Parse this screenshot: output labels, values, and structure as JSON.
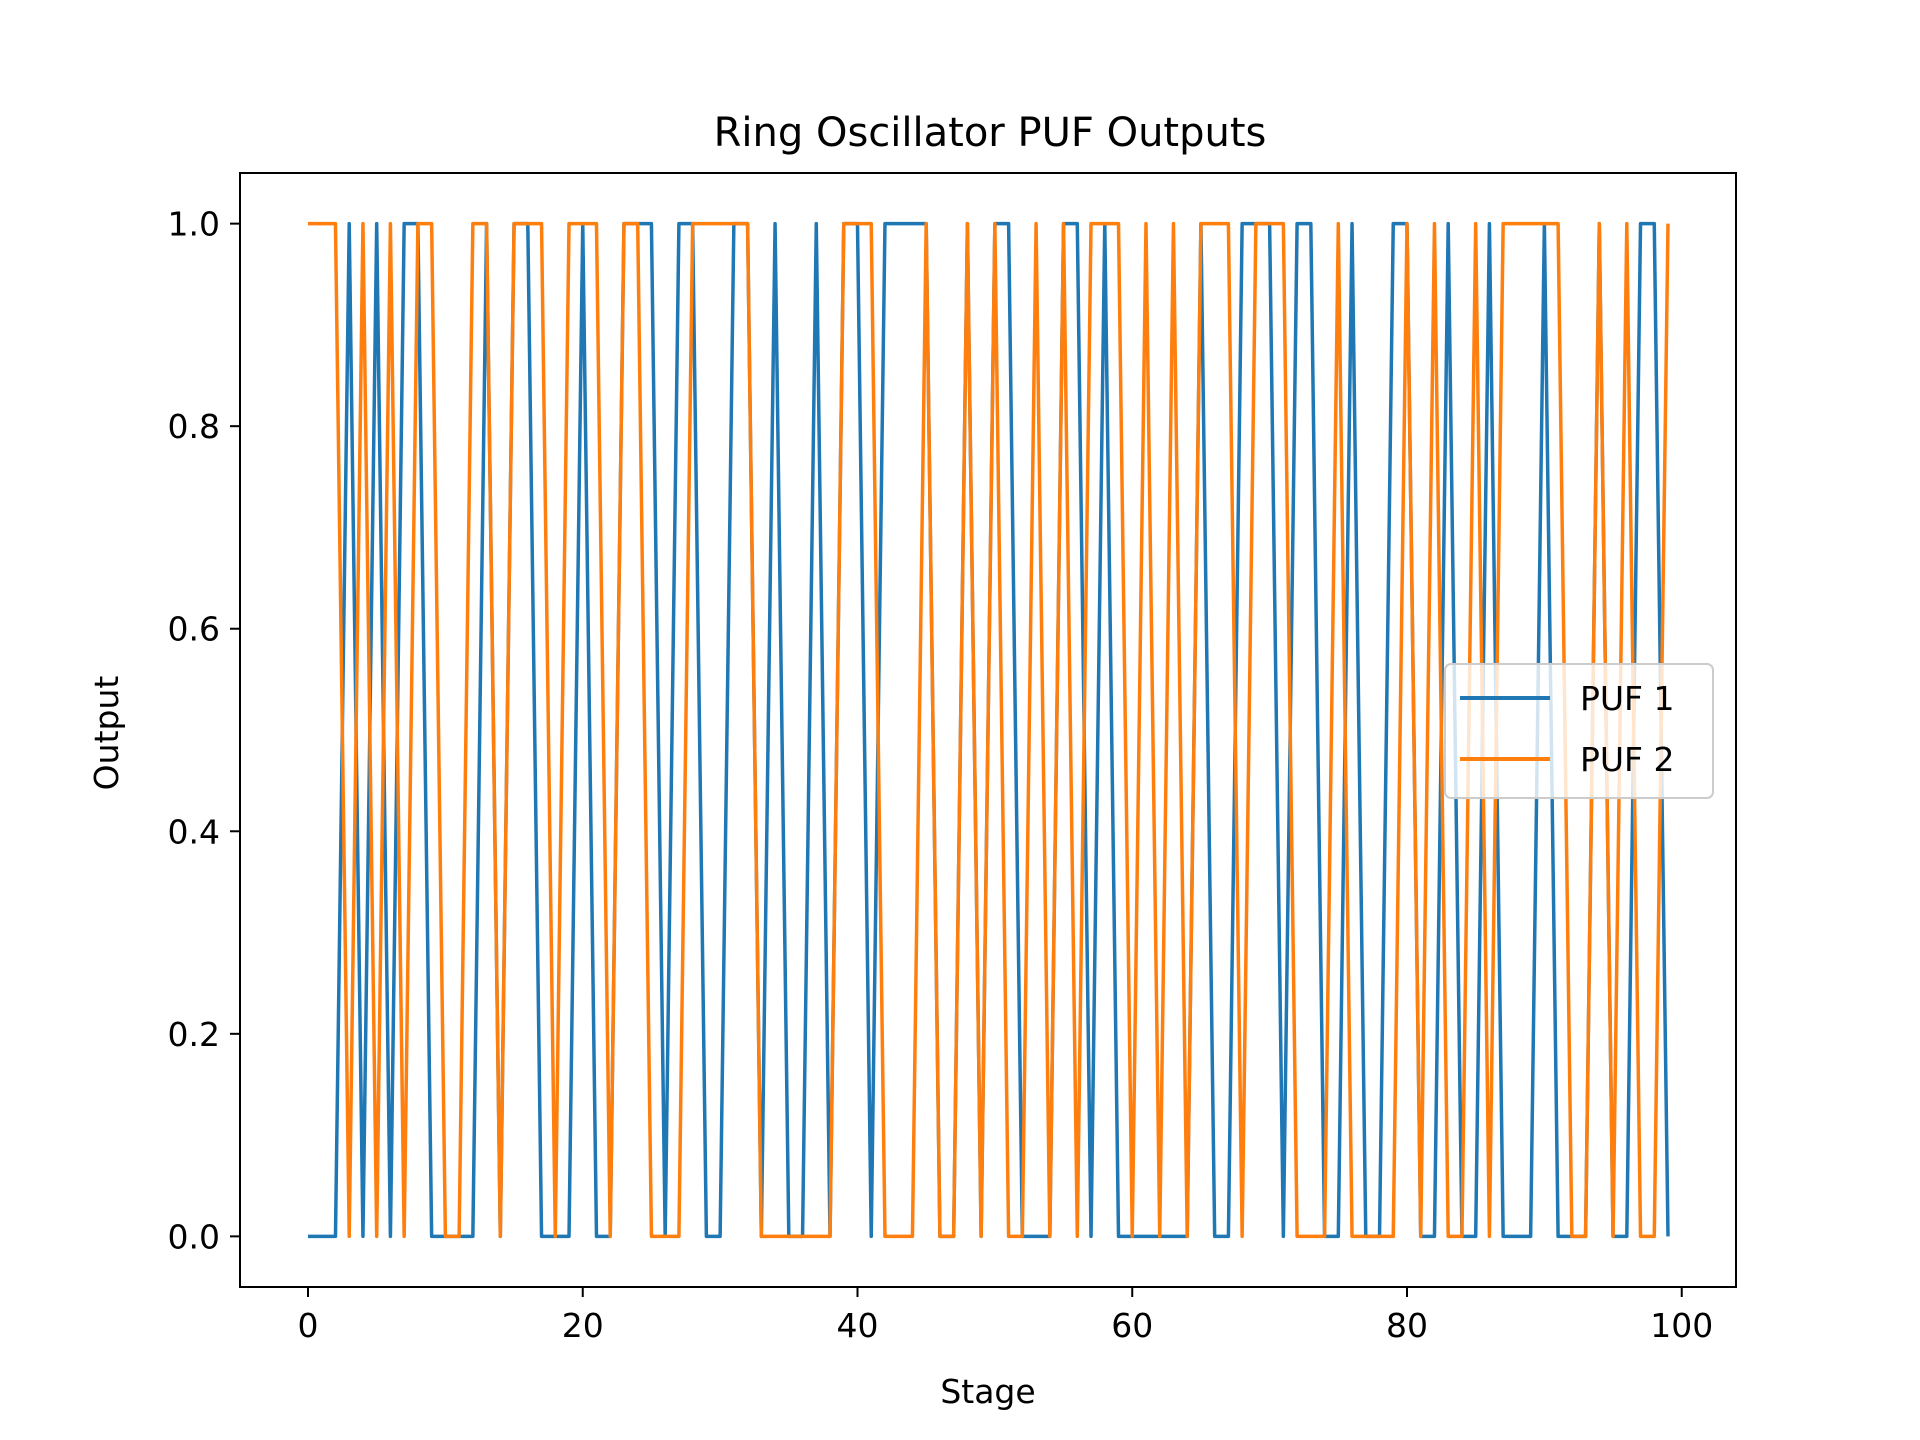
{
  "chart_data": {
    "type": "line",
    "title": "Ring Oscillator PUF Outputs",
    "xlabel": "Stage",
    "ylabel": "Output",
    "xlim": [
      -4.95,
      103.95
    ],
    "ylim": [
      -0.05,
      1.05
    ],
    "xticks": [
      0,
      20,
      40,
      60,
      80,
      100
    ],
    "yticks": [
      0.0,
      0.2,
      0.4,
      0.6,
      0.8,
      1.0
    ],
    "xtick_labels": [
      "0",
      "20",
      "40",
      "60",
      "80",
      "100"
    ],
    "ytick_labels": [
      "0.0",
      "0.2",
      "0.4",
      "0.6",
      "0.8",
      "1.0"
    ],
    "grid": false,
    "legend": {
      "placement": "center-right"
    },
    "series": [
      {
        "name": "PUF 1",
        "color": "#1f77b4",
        "values": [
          0,
          0,
          0,
          1,
          0,
          1,
          0,
          1,
          1,
          0,
          0,
          0,
          0,
          1,
          0,
          1,
          1,
          0,
          0,
          0,
          1,
          0,
          0,
          1,
          1,
          1,
          0,
          1,
          1,
          0,
          0,
          1,
          1,
          0,
          1,
          0,
          0,
          1,
          0,
          1,
          1,
          0,
          1,
          1,
          1,
          1,
          0,
          0,
          1,
          0,
          1,
          1,
          0,
          0,
          0,
          1,
          1,
          0,
          1,
          0,
          0,
          0,
          0,
          0,
          0,
          1,
          0,
          0,
          1,
          1,
          1,
          0,
          1,
          1,
          0,
          0,
          1,
          0,
          0,
          1,
          1,
          0,
          0,
          1,
          0,
          0,
          1,
          0,
          0,
          0,
          1,
          0,
          0,
          0,
          1,
          0,
          0,
          1,
          1,
          0
        ]
      },
      {
        "name": "PUF 2",
        "color": "#ff7f0e",
        "values": [
          1,
          1,
          1,
          0,
          1,
          0,
          1,
          0,
          1,
          1,
          0,
          0,
          1,
          1,
          0,
          1,
          1,
          1,
          0,
          1,
          1,
          1,
          0,
          1,
          1,
          0,
          0,
          0,
          1,
          1,
          1,
          1,
          1,
          0,
          0,
          0,
          0,
          0,
          0,
          1,
          1,
          1,
          0,
          0,
          0,
          1,
          0,
          0,
          1,
          0,
          1,
          0,
          0,
          1,
          0,
          1,
          0,
          1,
          1,
          1,
          0,
          1,
          0,
          1,
          0,
          1,
          1,
          1,
          0,
          1,
          1,
          1,
          0,
          0,
          0,
          1,
          0,
          0,
          0,
          0,
          1,
          0,
          1,
          0,
          0,
          1,
          0,
          1,
          1,
          1,
          1,
          1,
          0,
          0,
          1,
          0,
          1,
          0,
          0,
          1
        ]
      }
    ]
  }
}
